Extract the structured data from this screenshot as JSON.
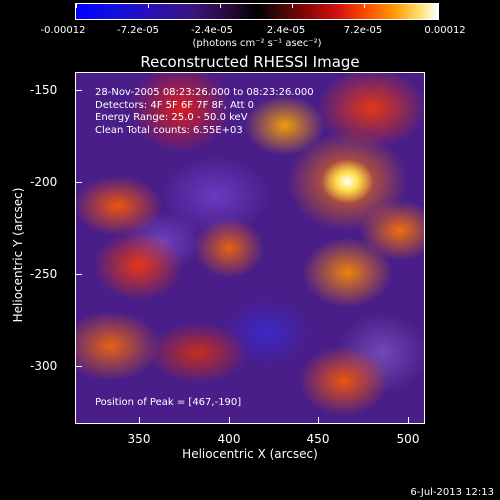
{
  "colorbar": {
    "ticks": [
      "-0.00012",
      "-7.2e-05",
      "-2.4e-05",
      "2.4e-05",
      "7.2e-05",
      "0.00012"
    ],
    "units": "(photons cm⁻² s⁻¹ asec⁻²)"
  },
  "title": "Reconstructed RHESSI Image",
  "annotations": {
    "time_range": "28-Nov-2005 08:23:26.000 to 08:23:26.000",
    "detectors": "Detectors: 4F 5F 6F 7F 8F, Att 0",
    "energy_range": "Energy Range: 25.0 - 50.0 keV",
    "method": "Clean     Total counts: 6.55E+03"
  },
  "peak_label": "Position of Peak = [467,-190]",
  "x_axis": {
    "label": "Heliocentric X (arcsec)",
    "ticks": [
      "350",
      "400",
      "450",
      "500"
    ]
  },
  "y_axis": {
    "label": "Heliocentric Y (arcsec)",
    "ticks": [
      "-150",
      "-200",
      "-250",
      "-300"
    ]
  },
  "timestamp": "6-Jul-2013 12:13",
  "colors": {
    "background": "#000000",
    "foreground": "#ffffff"
  }
}
